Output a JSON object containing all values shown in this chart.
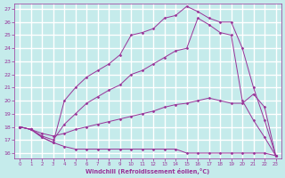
{
  "xlabel": "Windchill (Refroidissement éolien,°C)",
  "xlim": [
    -0.5,
    23.5
  ],
  "ylim": [
    15.6,
    27.4
  ],
  "xticks": [
    0,
    1,
    2,
    3,
    4,
    5,
    6,
    7,
    8,
    9,
    10,
    11,
    12,
    13,
    14,
    15,
    16,
    17,
    18,
    19,
    20,
    21,
    22,
    23
  ],
  "yticks": [
    16,
    17,
    18,
    19,
    20,
    21,
    22,
    23,
    24,
    25,
    26,
    27
  ],
  "bg_color": "#c5ebeb",
  "grid_color": "#ffffff",
  "line_color": "#993399",
  "lines": [
    {
      "x": [
        0,
        1,
        2,
        3,
        4,
        5,
        6,
        7,
        8,
        9,
        10,
        11,
        12,
        13,
        14,
        15,
        16,
        17,
        18,
        19,
        20,
        21,
        22,
        23
      ],
      "y": [
        18,
        17.8,
        17.2,
        16.8,
        16.5,
        16.3,
        16.3,
        16.3,
        16.3,
        16.3,
        16.3,
        16.3,
        16.3,
        16.3,
        16.3,
        16.0,
        16.0,
        16.0,
        16.0,
        16.0,
        16.0,
        16.0,
        16.0,
        15.8
      ]
    },
    {
      "x": [
        0,
        1,
        2,
        3,
        4,
        5,
        6,
        7,
        8,
        9,
        10,
        11,
        12,
        13,
        14,
        15,
        16,
        17,
        18,
        19,
        20,
        21,
        22,
        23
      ],
      "y": [
        18,
        17.8,
        17.5,
        17.3,
        17.5,
        17.8,
        18.0,
        18.2,
        18.4,
        18.6,
        18.8,
        19.0,
        19.2,
        19.5,
        19.7,
        19.8,
        20.0,
        20.2,
        20.0,
        19.8,
        19.8,
        20.5,
        19.5,
        15.8
      ]
    },
    {
      "x": [
        0,
        1,
        2,
        3,
        4,
        5,
        6,
        7,
        8,
        9,
        10,
        11,
        12,
        13,
        14,
        15,
        16,
        17,
        18,
        19,
        20,
        21,
        22,
        23
      ],
      "y": [
        18,
        17.8,
        17.3,
        17.0,
        18.2,
        19.0,
        19.8,
        20.3,
        20.8,
        21.2,
        22.0,
        22.3,
        22.8,
        23.3,
        23.8,
        24.0,
        26.3,
        25.8,
        25.2,
        25.0,
        20.0,
        18.5,
        17.2,
        15.8
      ]
    },
    {
      "x": [
        0,
        1,
        2,
        3,
        4,
        5,
        6,
        7,
        8,
        9,
        10,
        11,
        12,
        13,
        14,
        15,
        16,
        17,
        18,
        19,
        20,
        21,
        22,
        23
      ],
      "y": [
        18,
        17.8,
        17.2,
        16.8,
        20.0,
        21.0,
        21.8,
        22.3,
        22.8,
        23.5,
        25.0,
        25.2,
        25.5,
        26.3,
        26.5,
        27.2,
        26.8,
        26.3,
        26.0,
        26.0,
        24.0,
        21.0,
        18.5,
        15.8
      ]
    }
  ]
}
